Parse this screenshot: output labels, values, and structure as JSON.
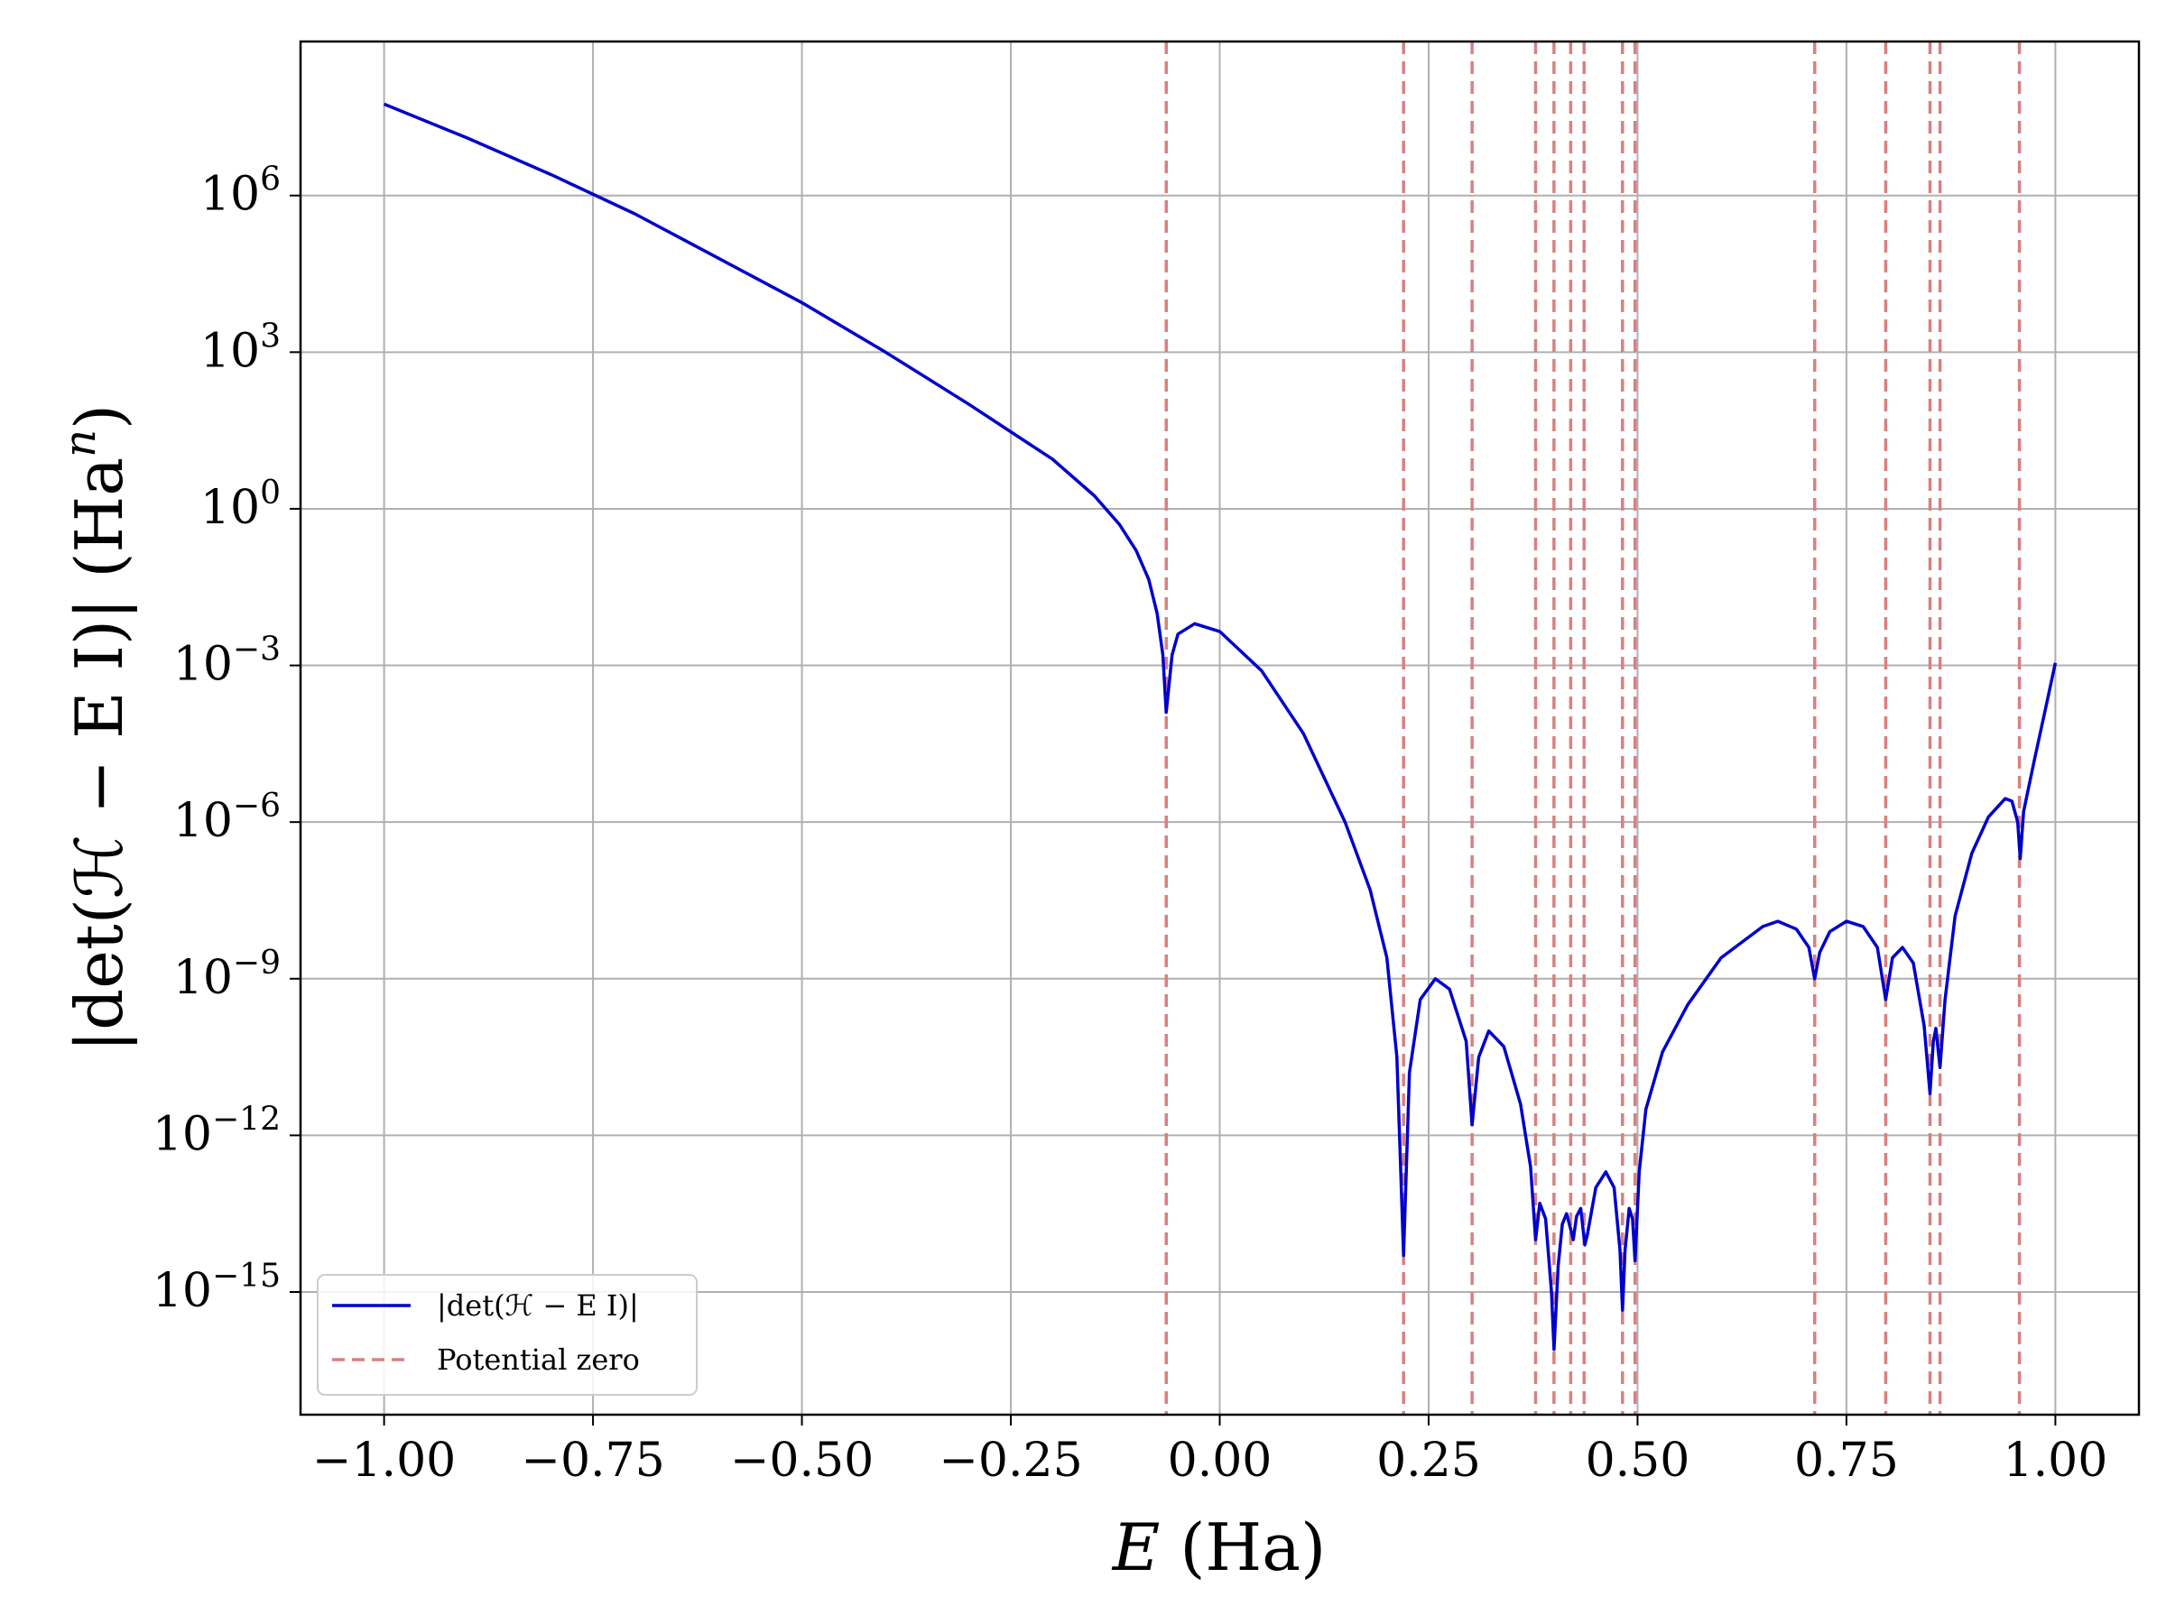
{
  "chart_data": {
    "type": "line",
    "title": "",
    "xlabel": "E (Ha)",
    "ylabel": "|det(ℋ − E I)| (Ha^n)",
    "xlabel_parts": {
      "var": "E",
      "unit": "(Ha)"
    },
    "ylabel_parts": {
      "main": "|det(ℋ − E I)|",
      "unit": "(Ha",
      "exp": "n",
      "close": ")"
    },
    "xscale": "linear",
    "yscale": "log",
    "xlim": [
      -1.1,
      1.1
    ],
    "ylim_log10": [
      -17.35,
      8.95
    ],
    "grid": true,
    "legend_position": "lower-left",
    "x_ticks": [
      {
        "value": -1.0,
        "label": "−1.00"
      },
      {
        "value": -0.75,
        "label": "−0.75"
      },
      {
        "value": -0.5,
        "label": "−0.50"
      },
      {
        "value": -0.25,
        "label": "−0.25"
      },
      {
        "value": 0.0,
        "label": "0.00"
      },
      {
        "value": 0.25,
        "label": "0.25"
      },
      {
        "value": 0.5,
        "label": "0.50"
      },
      {
        "value": 0.75,
        "label": "0.75"
      },
      {
        "value": 1.0,
        "label": "1.00"
      }
    ],
    "y_ticks": [
      {
        "log10": 6,
        "base": "10",
        "exp": "6"
      },
      {
        "log10": 3,
        "base": "10",
        "exp": "3"
      },
      {
        "log10": 0,
        "base": "10",
        "exp": "0"
      },
      {
        "log10": -3,
        "base": "10",
        "exp": "−3"
      },
      {
        "log10": -6,
        "base": "10",
        "exp": "−6"
      },
      {
        "log10": -9,
        "base": "10",
        "exp": "−9"
      },
      {
        "log10": -12,
        "base": "10",
        "exp": "−12"
      },
      {
        "log10": -15,
        "base": "10",
        "exp": "−15"
      }
    ],
    "series": [
      {
        "name": "|det(ℋ − E I)|",
        "color": "#0000cc",
        "style": "solid",
        "points_log10": [
          [
            -1.0,
            7.75
          ],
          [
            -0.9,
            7.1
          ],
          [
            -0.8,
            6.4
          ],
          [
            -0.7,
            5.65
          ],
          [
            -0.6,
            4.8
          ],
          [
            -0.5,
            3.95
          ],
          [
            -0.4,
            3.0
          ],
          [
            -0.3,
            2.0
          ],
          [
            -0.2,
            0.95
          ],
          [
            -0.15,
            0.25
          ],
          [
            -0.12,
            -0.3
          ],
          [
            -0.1,
            -0.8
          ],
          [
            -0.085,
            -1.35
          ],
          [
            -0.075,
            -2.0
          ],
          [
            -0.068,
            -2.8
          ],
          [
            -0.064,
            -3.9
          ],
          [
            -0.057,
            -2.8
          ],
          [
            -0.05,
            -2.4
          ],
          [
            -0.03,
            -2.2
          ],
          [
            0.0,
            -2.35
          ],
          [
            0.05,
            -3.1
          ],
          [
            0.1,
            -4.3
          ],
          [
            0.15,
            -6.0
          ],
          [
            0.18,
            -7.3
          ],
          [
            0.2,
            -8.6
          ],
          [
            0.212,
            -10.5
          ],
          [
            0.22,
            -14.3
          ],
          [
            0.227,
            -10.8
          ],
          [
            0.24,
            -9.4
          ],
          [
            0.258,
            -9.0
          ],
          [
            0.275,
            -9.2
          ],
          [
            0.295,
            -10.2
          ],
          [
            0.302,
            -11.8
          ],
          [
            0.31,
            -10.5
          ],
          [
            0.322,
            -10.0
          ],
          [
            0.34,
            -10.3
          ],
          [
            0.36,
            -11.4
          ],
          [
            0.372,
            -12.6
          ],
          [
            0.378,
            -14.0
          ],
          [
            0.383,
            -13.3
          ],
          [
            0.39,
            -13.6
          ],
          [
            0.397,
            -15.0
          ],
          [
            0.4,
            -16.1
          ],
          [
            0.405,
            -14.5
          ],
          [
            0.41,
            -13.7
          ],
          [
            0.415,
            -13.5
          ],
          [
            0.42,
            -13.8
          ],
          [
            0.423,
            -14.0
          ],
          [
            0.427,
            -13.55
          ],
          [
            0.432,
            -13.4
          ],
          [
            0.437,
            -14.1
          ],
          [
            0.44,
            -13.9
          ],
          [
            0.45,
            -13.0
          ],
          [
            0.462,
            -12.7
          ],
          [
            0.472,
            -13.0
          ],
          [
            0.479,
            -14.2
          ],
          [
            0.482,
            -15.35
          ],
          [
            0.485,
            -14.2
          ],
          [
            0.49,
            -13.4
          ],
          [
            0.494,
            -13.6
          ],
          [
            0.497,
            -14.4
          ],
          [
            0.502,
            -12.7
          ],
          [
            0.51,
            -11.5
          ],
          [
            0.53,
            -10.4
          ],
          [
            0.56,
            -9.5
          ],
          [
            0.6,
            -8.6
          ],
          [
            0.65,
            -8.0
          ],
          [
            0.668,
            -7.9
          ],
          [
            0.69,
            -8.05
          ],
          [
            0.705,
            -8.4
          ],
          [
            0.712,
            -9.0
          ],
          [
            0.718,
            -8.5
          ],
          [
            0.73,
            -8.1
          ],
          [
            0.75,
            -7.9
          ],
          [
            0.77,
            -8.0
          ],
          [
            0.787,
            -8.4
          ],
          [
            0.797,
            -9.4
          ],
          [
            0.805,
            -8.6
          ],
          [
            0.817,
            -8.4
          ],
          [
            0.83,
            -8.7
          ],
          [
            0.843,
            -9.9
          ],
          [
            0.85,
            -11.2
          ],
          [
            0.854,
            -10.2
          ],
          [
            0.857,
            -9.95
          ],
          [
            0.862,
            -10.7
          ],
          [
            0.868,
            -9.4
          ],
          [
            0.88,
            -7.8
          ],
          [
            0.9,
            -6.6
          ],
          [
            0.92,
            -5.9
          ],
          [
            0.94,
            -5.55
          ],
          [
            0.948,
            -5.6
          ],
          [
            0.955,
            -6.0
          ],
          [
            0.958,
            -6.7
          ],
          [
            0.962,
            -5.8
          ],
          [
            0.975,
            -4.8
          ],
          [
            0.99,
            -3.7
          ],
          [
            1.0,
            -2.95
          ]
        ]
      },
      {
        "name": "Potential zero",
        "color": "#d98080",
        "style": "dashed",
        "vlines_x": [
          -0.064,
          0.22,
          0.302,
          0.378,
          0.4,
          0.42,
          0.436,
          0.482,
          0.497,
          0.712,
          0.797,
          0.85,
          0.862,
          0.957
        ]
      }
    ],
    "legend": [
      {
        "label": "|det(ℋ − E I)|",
        "color": "#0000cc",
        "style": "solid"
      },
      {
        "label": "Potential zero",
        "color": "#d98080",
        "style": "dashed"
      }
    ]
  }
}
